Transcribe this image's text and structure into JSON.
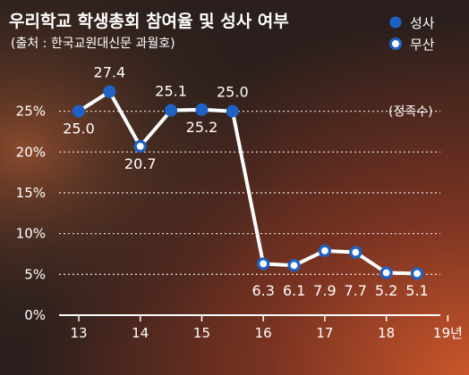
{
  "chart_data": {
    "type": "line",
    "title": "우리학교 학생총회 참여율 및 성사 여부",
    "subtitle": "(출처 : 한국교원대신문 과월호)",
    "legend": [
      {
        "label": "성사",
        "marker": "filled"
      },
      {
        "label": "무산",
        "marker": "hollow"
      }
    ],
    "legend_position": "top-right",
    "ylim": [
      0,
      27.5
    ],
    "yticks": [
      0,
      5,
      10,
      15,
      20,
      25
    ],
    "ytick_labels": [
      "0%",
      "5%",
      "10%",
      "15%",
      "20%",
      "25%"
    ],
    "grid": "horizontal-dotted",
    "x_ticks": [
      {
        "label": "13",
        "x": 13.0
      },
      {
        "label": "14",
        "x": 14.0
      },
      {
        "label": "15",
        "x": 15.0
      },
      {
        "label": "16",
        "x": 16.0
      },
      {
        "label": "17",
        "x": 17.0
      },
      {
        "label": "18",
        "x": 18.0
      },
      {
        "label": "19년",
        "x": 19.0
      }
    ],
    "xlim": [
      12.5,
      19.55
    ],
    "quorum_label": "(정족수)",
    "quorum_value": 25,
    "points": [
      {
        "x": 13.0,
        "y": 25.0,
        "label": "25.0",
        "status": "성사"
      },
      {
        "x": 13.5,
        "y": 27.4,
        "label": "27.4",
        "status": "성사"
      },
      {
        "x": 14.0,
        "y": 20.7,
        "label": "20.7",
        "status": "무산"
      },
      {
        "x": 14.5,
        "y": 25.1,
        "label": "25.1",
        "status": "성사"
      },
      {
        "x": 15.0,
        "y": 25.2,
        "label": "25.2",
        "status": "성사"
      },
      {
        "x": 15.5,
        "y": 25.0,
        "label": "25.0",
        "status": "성사"
      },
      {
        "x": 16.0,
        "y": 6.3,
        "label": "6.3",
        "status": "무산"
      },
      {
        "x": 16.5,
        "y": 6.1,
        "label": "6.1",
        "status": "무산"
      },
      {
        "x": 17.0,
        "y": 7.9,
        "label": "7.9",
        "status": "무산"
      },
      {
        "x": 17.5,
        "y": 7.7,
        "label": "7.7",
        "status": "무산"
      },
      {
        "x": 18.0,
        "y": 5.2,
        "label": "5.2",
        "status": "무산"
      },
      {
        "x": 18.5,
        "y": 5.1,
        "label": "5.1",
        "status": "무산"
      }
    ],
    "colors": {
      "line": "#ffffff",
      "filled_marker": "#1f62c5",
      "hollow_marker": "#ffffff",
      "hollow_stroke": "#1f62c5",
      "text": "#ffffff",
      "grid": "#ffffff"
    }
  }
}
